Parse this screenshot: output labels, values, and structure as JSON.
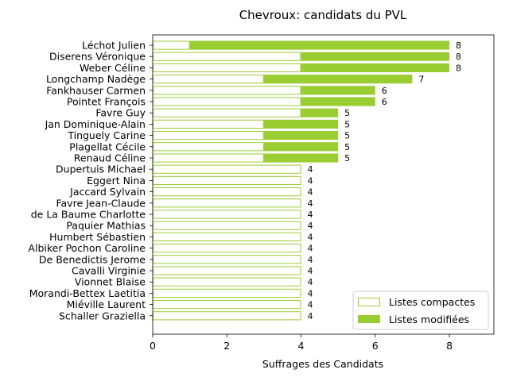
{
  "chart_data": {
    "type": "bar",
    "orientation": "horizontal",
    "stacked": true,
    "title": "Chevroux: candidats du PVL",
    "xlabel": "Suffrages des Candidats",
    "ylabel": "",
    "xlim": [
      0,
      9.2
    ],
    "xticks": [
      "0",
      "2",
      "4",
      "6",
      "8"
    ],
    "grid": false,
    "legend_position": "lower right",
    "colors": {
      "compact_edge": "#9acd32",
      "compact_fill": "#ffffff",
      "modified_fill": "#9acd32"
    },
    "categories": [
      "Léchot Julien",
      "Diserens Véronique",
      "Weber Céline",
      "Longchamp Nadège",
      "Fankhauser Carmen",
      "Pointet François",
      "Favre Guy",
      "Jan Dominique-Alain",
      "Tinguely Carine",
      "Plagellat Cécile",
      "Renaud Céline",
      "Dupertuis Michael",
      "Eggert Nina",
      "Jaccard Sylvain",
      "Favre Jean-Claude",
      "de La Baume Charlotte",
      "Paquier Mathias",
      "Humbert Sébastien",
      "Albiker Pochon Caroline",
      "De Benedictis Jerome",
      "Cavalli Virginie",
      "Vionnet Blaise",
      "Morandi-Bettex Laetitia",
      "Miéville Laurent",
      "Schaller Graziella"
    ],
    "series": [
      {
        "name": "Listes compactes",
        "values": [
          1,
          4,
          4,
          3,
          4,
          4,
          4,
          3,
          3,
          3,
          3,
          4,
          4,
          4,
          4,
          4,
          4,
          4,
          4,
          4,
          4,
          4,
          4,
          4,
          4
        ]
      },
      {
        "name": "Listes modifiées",
        "values": [
          7,
          4,
          4,
          4,
          2,
          2,
          1,
          2,
          2,
          2,
          2,
          0,
          0,
          0,
          0,
          0,
          0,
          0,
          0,
          0,
          0,
          0,
          0,
          0,
          0
        ]
      }
    ],
    "totals": [
      "8",
      "8",
      "8",
      "7",
      "6",
      "6",
      "5",
      "5",
      "5",
      "5",
      "5",
      "4",
      "4",
      "4",
      "4",
      "4",
      "4",
      "4",
      "4",
      "4",
      "4",
      "4",
      "4",
      "4",
      "4"
    ]
  }
}
